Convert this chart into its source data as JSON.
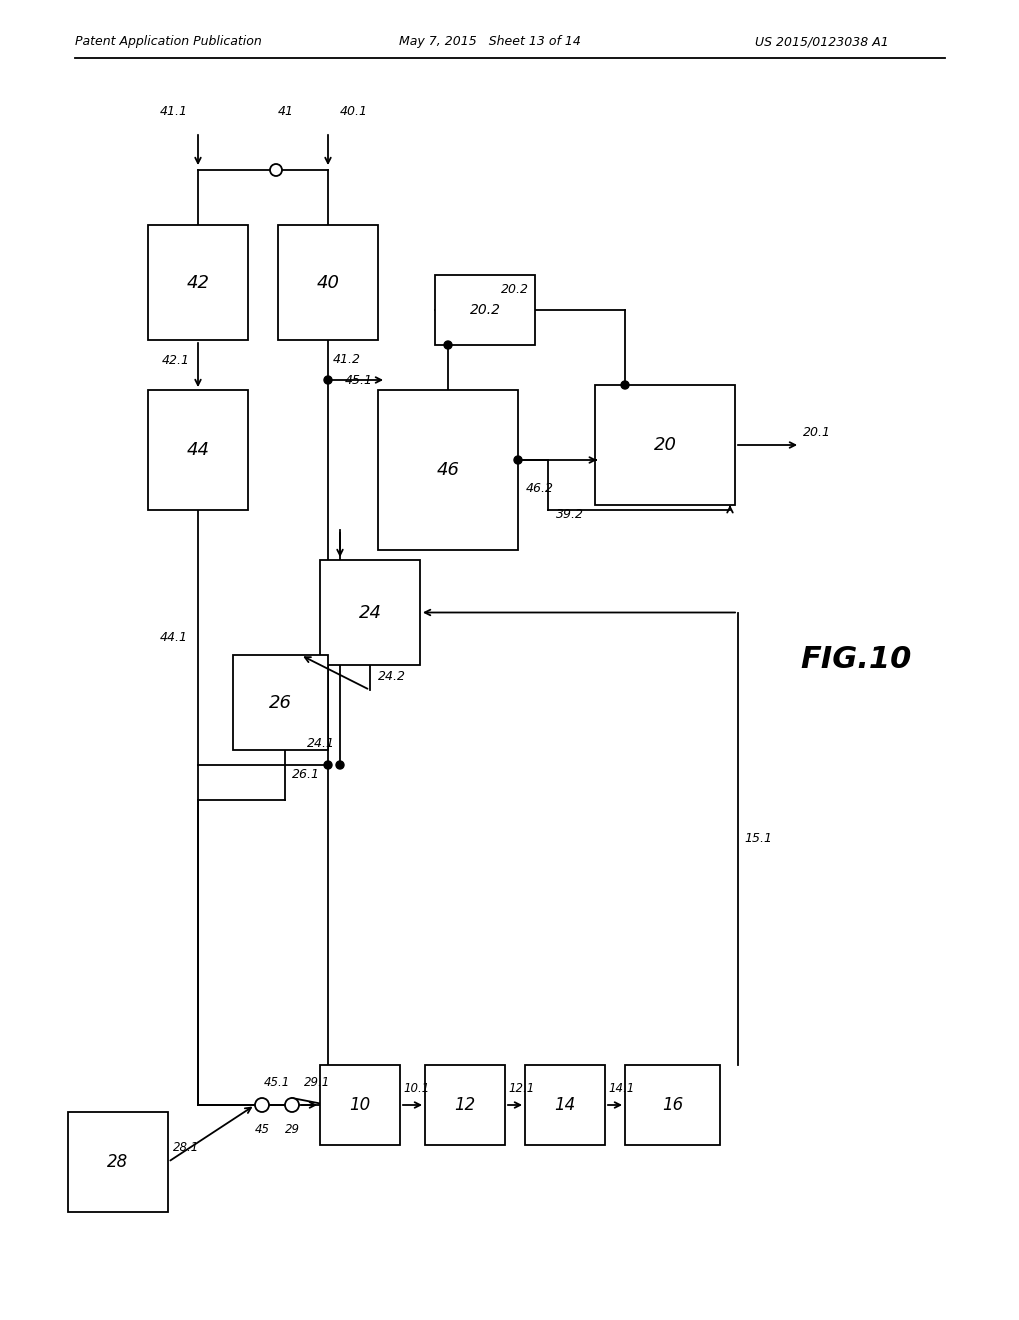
{
  "header_left": "Patent Application Publication",
  "header_mid": "May 7, 2015   Sheet 13 of 14",
  "header_right": "US 2015/0123038 A1",
  "fig_label": "FIG.10",
  "bg": "#ffffff",
  "lc": "#000000"
}
